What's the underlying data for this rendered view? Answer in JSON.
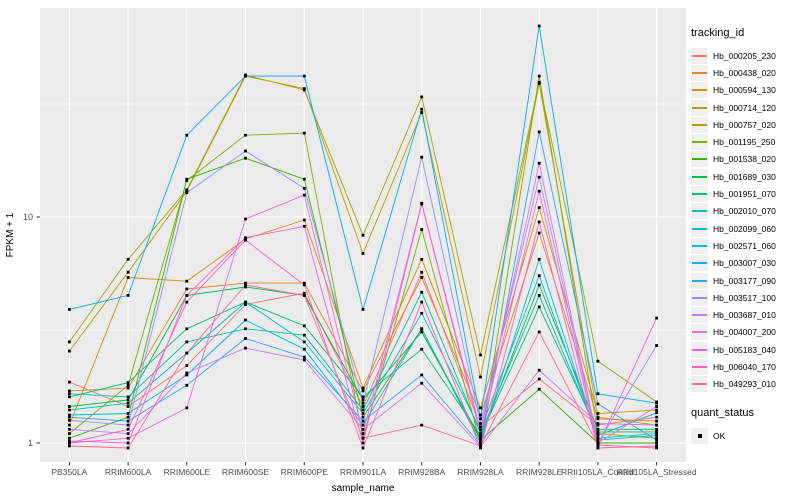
{
  "figure": {
    "y_axis_title": "FPKM + 1",
    "x_axis_title": "sample_name",
    "legend": {
      "tracking_title": "tracking_id",
      "quant_title": "quant_status",
      "quant_items": [
        {
          "label": "OK",
          "marker": "black-square"
        }
      ]
    },
    "colors": {
      "panel_bg": "#EBEBEB",
      "grid": "#FFFFFF",
      "tick_text": "#4D4D4D",
      "axis_title_text": "#000000",
      "point_marker": "#000000",
      "legend_key_bg": "#F0F0F0"
    }
  },
  "chart_data": {
    "type": "line",
    "title": "",
    "xlabel": "sample_name",
    "ylabel": "FPKM + 1",
    "y_scale": "log10",
    "ylim": [
      0.85,
      84
    ],
    "y_ticks": [
      1,
      10
    ],
    "y_minor_ticks": [
      3.162,
      31.62
    ],
    "grid": true,
    "legend_position": "right",
    "point_marker": "black-square",
    "categories": [
      "PB350LA",
      "RRIM600LA",
      "RRIM600LE",
      "RRIM600SE",
      "RRIM600PE",
      "RRIM901LA",
      "RRIM928BA",
      "RRIM928LA",
      "RRIM928LE",
      "RRII105LA_Control",
      "RRII105LA_Stressed"
    ],
    "series": [
      {
        "name": "Hb_000205_230",
        "color": "#F8766D",
        "values": [
          1.86,
          1.45,
          2.2,
          4.1,
          4.6,
          1.45,
          5.7,
          1.18,
          1.92,
          1.2,
          1.3
        ]
      },
      {
        "name": "Hb_000438_020",
        "color": "#EA8331",
        "values": [
          1.7,
          1.75,
          4.8,
          5.1,
          5.1,
          1.7,
          5.4,
          1.33,
          8.5,
          1.28,
          1.25
        ]
      },
      {
        "name": "Hb_000594_130",
        "color": "#D89000",
        "values": [
          1.2,
          5.4,
          5.2,
          8.0,
          9.7,
          1.75,
          6.5,
          1.43,
          11.0,
          1.35,
          1.4
        ]
      },
      {
        "name": "Hb_000714_120",
        "color": "#C09B00",
        "values": [
          2.55,
          5.7,
          13.0,
          42.0,
          37.0,
          6.9,
          29.0,
          1.96,
          39.0,
          1.3,
          1.2
        ]
      },
      {
        "name": "Hb_000757_020",
        "color": "#A3A500",
        "values": [
          2.8,
          6.5,
          13.2,
          42.5,
          36.5,
          8.3,
          34.0,
          2.45,
          39.5,
          2.3,
          1.52
        ]
      },
      {
        "name": "Hb_001195_250",
        "color": "#7CAE00",
        "values": [
          1.1,
          1.8,
          14.5,
          23.0,
          23.5,
          1.05,
          8.8,
          1.0,
          42.0,
          1.1,
          1.05
        ]
      },
      {
        "name": "Hb_001538_020",
        "color": "#39B600",
        "values": [
          1.05,
          1.3,
          14.7,
          18.2,
          14.7,
          1.3,
          3.2,
          1.03,
          1.73,
          1.0,
          1.0
        ]
      },
      {
        "name": "Hb_001689_030",
        "color": "#00BB4E",
        "values": [
          1.45,
          1.55,
          4.5,
          4.9,
          4.5,
          1.55,
          3.1,
          1.05,
          5.0,
          1.15,
          1.15
        ]
      },
      {
        "name": "Hb_001951_070",
        "color": "#00BF7D",
        "values": [
          1.6,
          1.85,
          3.2,
          4.2,
          3.3,
          1.6,
          2.6,
          1.08,
          4.0,
          1.12,
          1.12
        ]
      },
      {
        "name": "Hb_002010_070",
        "color": "#00C1A3",
        "values": [
          1.65,
          1.6,
          2.8,
          3.2,
          3.0,
          1.4,
          4.65,
          1.1,
          4.5,
          1.08,
          1.36
        ]
      },
      {
        "name": "Hb_002099_060",
        "color": "#00BFC4",
        "values": [
          1.4,
          1.5,
          2.5,
          4.2,
          2.8,
          1.35,
          3.75,
          1.14,
          5.5,
          1.05,
          1.1
        ]
      },
      {
        "name": "Hb_002571_060",
        "color": "#00BAE0",
        "values": [
          1.33,
          1.35,
          2.0,
          3.5,
          2.6,
          1.2,
          3.2,
          1.0,
          6.5,
          1.03,
          1.08
        ]
      },
      {
        "name": "Hb_003007_030",
        "color": "#00B0F6",
        "values": [
          3.9,
          4.5,
          23.0,
          42.0,
          42.0,
          3.9,
          30.0,
          1.28,
          70.0,
          1.65,
          1.5
        ]
      },
      {
        "name": "Hb_003177_090",
        "color": "#35A2FF",
        "values": [
          1.3,
          1.25,
          1.8,
          2.9,
          2.4,
          1.25,
          2.0,
          0.98,
          23.8,
          1.49,
          1.03
        ]
      },
      {
        "name": "Hb_003517_100",
        "color": "#9590FF",
        "values": [
          1.26,
          1.2,
          12.8,
          19.6,
          13.4,
          1.5,
          18.4,
          1.22,
          15.0,
          1.0,
          2.7
        ]
      },
      {
        "name": "Hb_003687_010",
        "color": "#C77CFF",
        "values": [
          1.15,
          1.1,
          2.04,
          2.63,
          2.33,
          1.15,
          1.84,
          0.96,
          2.1,
          1.22,
          1.2
        ]
      },
      {
        "name": "Hb_004007_200",
        "color": "#E76BF3",
        "values": [
          1.0,
          1.05,
          1.43,
          9.8,
          12.5,
          1.1,
          11.5,
          1.14,
          17.3,
          1.0,
          1.45
        ]
      },
      {
        "name": "Hb_005183_040",
        "color": "#FA62DB",
        "values": [
          1.02,
          1.0,
          4.5,
          8.1,
          9.1,
          1.0,
          11.4,
          1.1,
          13.0,
          0.97,
          3.57
        ]
      },
      {
        "name": "Hb_006040_170",
        "color": "#FF62BC",
        "values": [
          1.0,
          1.15,
          4.2,
          7.9,
          5.0,
          0.95,
          4.2,
          0.95,
          9.5,
          0.95,
          0.97
        ]
      },
      {
        "name": "Hb_049293_010",
        "color": "#FF6A98",
        "values": [
          0.97,
          0.95,
          2.5,
          5.0,
          4.5,
          1.05,
          1.2,
          0.97,
          3.1,
          0.98,
          0.95
        ]
      }
    ]
  }
}
